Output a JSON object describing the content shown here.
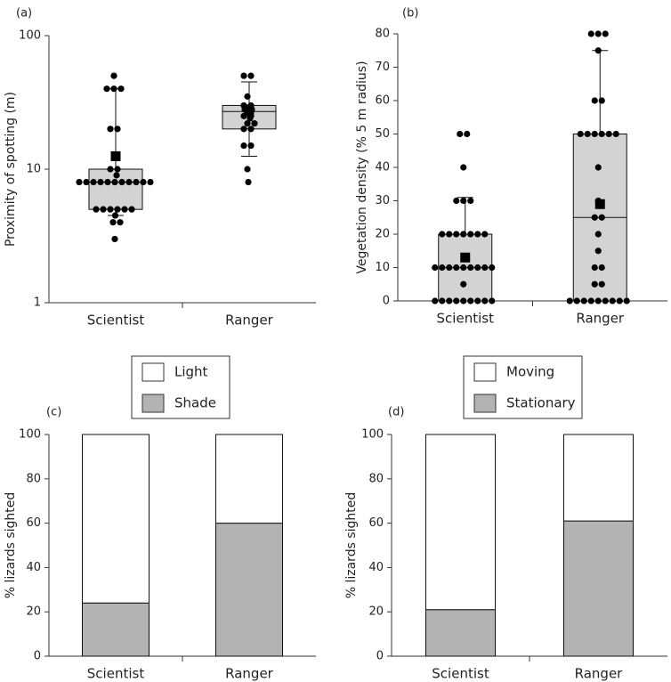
{
  "chart_data": [
    {
      "type": "box",
      "panel_label": "(a)",
      "y_label": "Proximity of spotting (m)",
      "log_scale": true,
      "ylim": [
        1,
        100
      ],
      "yticks": [
        1,
        10,
        100
      ],
      "categories": [
        "Scientist",
        "Ranger"
      ],
      "boxes": [
        {
          "whisker_low": 4.5,
          "q1": 5,
          "median": 8,
          "q3": 10,
          "whisker_high": 40,
          "mean": 12.5,
          "points": [
            3,
            4,
            4,
            4.5,
            5,
            5,
            5,
            5,
            5,
            5,
            8,
            8,
            8,
            8,
            8,
            8,
            8,
            8,
            8,
            8,
            8,
            9,
            10,
            10,
            20,
            20,
            40,
            40,
            40,
            50
          ]
        },
        {
          "whisker_low": 12.5,
          "q1": 20,
          "median": 27,
          "q3": 30,
          "whisker_high": 45,
          "mean": 28,
          "points": [
            8,
            10,
            15,
            15,
            20,
            20,
            22,
            22,
            24,
            25,
            25,
            26,
            27,
            28,
            28,
            29,
            30,
            30,
            35,
            50,
            50
          ]
        }
      ]
    },
    {
      "type": "box",
      "panel_label": "(b)",
      "y_label": "Vegetation density (% 5 m radius)",
      "log_scale": false,
      "ylim": [
        0,
        80
      ],
      "yticks": [
        0,
        10,
        20,
        30,
        40,
        50,
        60,
        70,
        80
      ],
      "categories": [
        "Scientist",
        "Ranger"
      ],
      "boxes": [
        {
          "whisker_low": 0,
          "q1": 0,
          "median": 10,
          "q3": 20,
          "whisker_high": 31,
          "mean": 13,
          "points": [
            0,
            0,
            0,
            0,
            0,
            0,
            0,
            0,
            0,
            5,
            10,
            10,
            10,
            10,
            10,
            10,
            10,
            10,
            10,
            20,
            20,
            20,
            20,
            20,
            20,
            20,
            30,
            30,
            30,
            40,
            50,
            50
          ]
        },
        {
          "whisker_low": 0,
          "q1": 0,
          "median": 25,
          "q3": 50,
          "whisker_high": 75,
          "mean": 29,
          "points": [
            0,
            0,
            0,
            0,
            0,
            0,
            0,
            0,
            0,
            5,
            5,
            10,
            10,
            15,
            20,
            25,
            25,
            30,
            40,
            50,
            50,
            50,
            50,
            50,
            50,
            60,
            60,
            75,
            80,
            80,
            80
          ]
        }
      ]
    },
    {
      "type": "stacked_bar",
      "panel_label": "(c)",
      "y_label": "% lizards sighted",
      "ylim": [
        0,
        100
      ],
      "yticks": [
        0,
        20,
        40,
        60,
        80,
        100
      ],
      "categories": [
        "Scientist",
        "Ranger"
      ],
      "series": [
        {
          "name": "Light",
          "color": "#ffffff",
          "values": [
            76,
            40
          ]
        },
        {
          "name": "Shade",
          "color": "#b3b3b3",
          "values": [
            24,
            60
          ]
        }
      ]
    },
    {
      "type": "stacked_bar",
      "panel_label": "(d)",
      "y_label": "% lizards sighted",
      "ylim": [
        0,
        100
      ],
      "yticks": [
        0,
        20,
        40,
        60,
        80,
        100
      ],
      "categories": [
        "Scientist",
        "Ranger"
      ],
      "series": [
        {
          "name": "Moving",
          "color": "#ffffff",
          "values": [
            79,
            39
          ]
        },
        {
          "name": "Stationary",
          "color": "#b3b3b3",
          "values": [
            21,
            61
          ]
        }
      ]
    }
  ]
}
